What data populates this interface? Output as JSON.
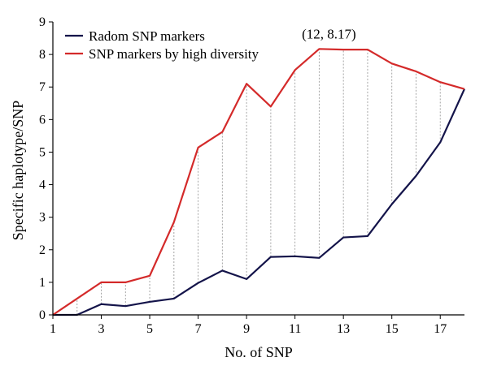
{
  "chart_data": {
    "type": "line",
    "title": "",
    "xlabel": "No. of SNP",
    "ylabel": "Specific haplotype/SNP",
    "xlim": [
      1,
      18
    ],
    "ylim": [
      0,
      9
    ],
    "xticks": [
      1,
      3,
      5,
      7,
      9,
      11,
      13,
      15,
      17
    ],
    "yticks": [
      0,
      1,
      2,
      3,
      4,
      5,
      6,
      7,
      8,
      9
    ],
    "x": [
      1,
      2,
      3,
      4,
      5,
      6,
      7,
      8,
      9,
      10,
      11,
      12,
      13,
      14,
      15,
      16,
      17,
      18
    ],
    "legend_position": "top-left",
    "grid": false,
    "connector_lines": "dashed vertical lines between the two series at each x",
    "series": [
      {
        "name": "Radom SNP markers",
        "color": "#14144a",
        "values": [
          0,
          0,
          0.33,
          0.27,
          0.4,
          0.5,
          0.98,
          1.36,
          1.1,
          1.78,
          1.8,
          1.75,
          2.38,
          2.42,
          3.4,
          4.27,
          5.3,
          6.94
        ]
      },
      {
        "name": "SNP markers by high diversity",
        "color": "#d42a2a",
        "values": [
          0,
          0.5,
          1.0,
          1.0,
          1.2,
          2.85,
          5.14,
          5.62,
          7.1,
          6.4,
          7.52,
          8.17,
          8.15,
          8.15,
          7.72,
          7.48,
          7.15,
          6.94
        ]
      }
    ],
    "annotations": [
      {
        "text": "(12, 8.17)",
        "x": 12,
        "y": 8.17
      }
    ]
  }
}
